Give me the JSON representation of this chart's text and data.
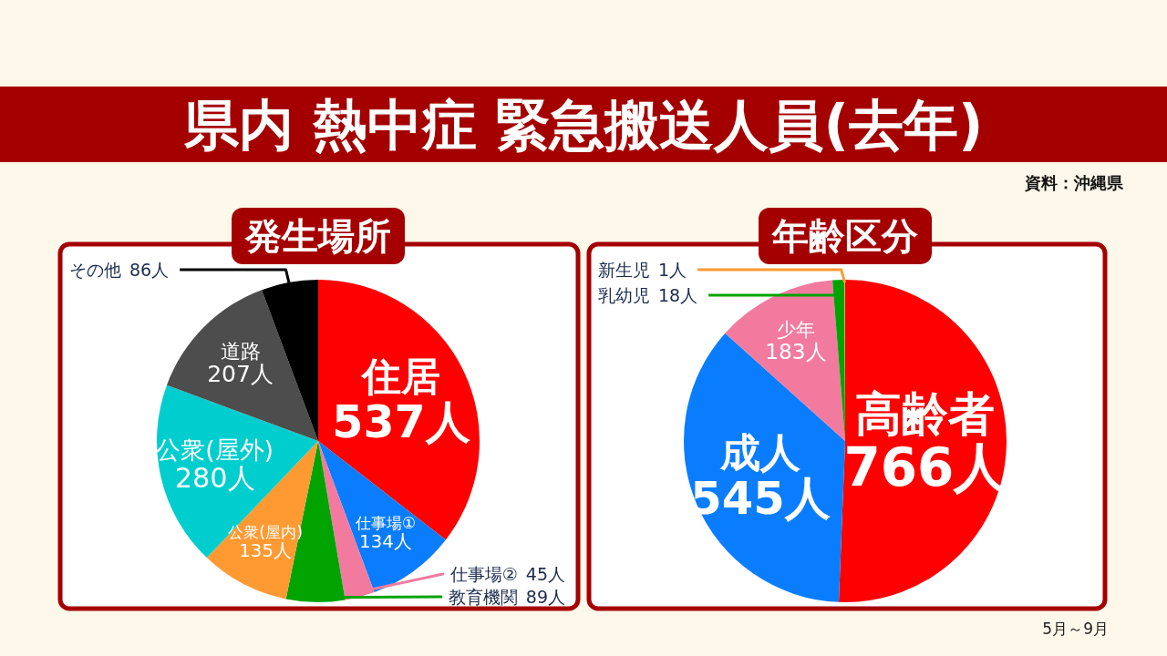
{
  "chart_data": [
    {
      "type": "pie",
      "title": "発生場所",
      "categories": [
        "住居",
        "仕事場①",
        "仕事場②",
        "教育機関",
        "公衆(屋内)",
        "公衆(屋外)",
        "道路",
        "その他"
      ],
      "values": [
        537,
        134,
        45,
        89,
        135,
        280,
        207,
        86
      ],
      "colors": [
        "#ff0000",
        "#0a7dff",
        "#f27a9f",
        "#00a300",
        "#ff9a33",
        "#00cece",
        "#4d4d4d",
        "#000000"
      ],
      "value_labels": [
        "537人",
        "134人",
        "45人",
        "89人",
        "135人",
        "280人",
        "207人",
        "86人"
      ],
      "annotations": [
        "県内 熱中症 緊急搬送人員(去年)",
        "資料：沖縄県"
      ]
    },
    {
      "type": "pie",
      "title": "年齢区分",
      "categories": [
        "高齢者",
        "成人",
        "少年",
        "乳幼児",
        "新生児"
      ],
      "values": [
        766,
        545,
        183,
        18,
        1
      ],
      "colors": [
        "#ff0000",
        "#0a7dff",
        "#f27a9f",
        "#00a300",
        "#ff9a33"
      ],
      "value_labels": [
        "766人",
        "545人",
        "183人",
        "18人",
        "1人"
      ],
      "annotations": [
        "5月～9月"
      ]
    }
  ]
}
